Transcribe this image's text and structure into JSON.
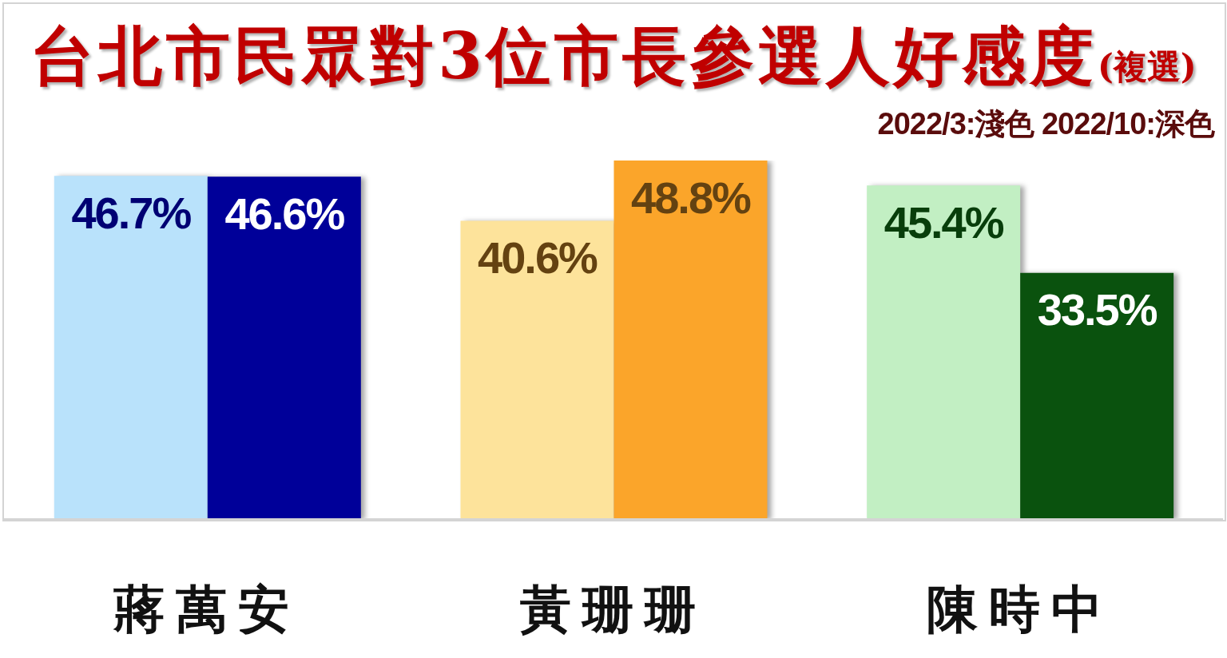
{
  "chart_data": {
    "type": "bar",
    "title": "台北市民眾對3位市長參選人好感度(複選)",
    "subtitle": "2022/3:淺色 2022/10:深色",
    "categories": [
      "蔣萬安",
      "黃珊珊",
      "陳時中"
    ],
    "series": [
      {
        "colors": [
          "#b9e2fb",
          "#fde39b",
          "#c2efc3"
        ],
        "values": [
          46.7,
          40.6,
          45.4
        ],
        "value_labels": [
          "46.7%",
          "40.6%",
          "45.4%"
        ]
      },
      {
        "colors": [
          "#000099",
          "#fba52a",
          "#0a520e"
        ],
        "values": [
          46.6,
          48.8,
          33.5
        ],
        "value_labels": [
          "46.6%",
          "48.8%",
          "33.5%"
        ]
      }
    ],
    "tick_labels": "x"
  }
}
